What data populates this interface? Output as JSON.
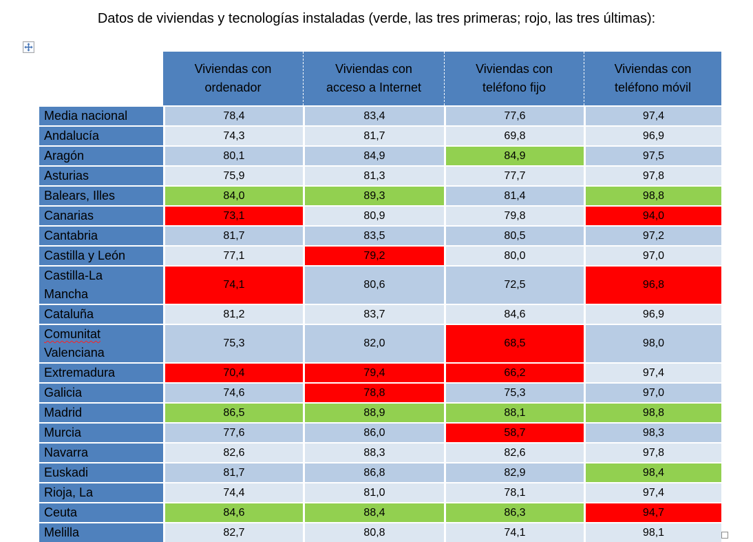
{
  "title": "Datos de viviendas y tecnologías instaladas (verde, las tres primeras; rojo, las tres últimas):",
  "colors": {
    "header_bg": "#4F81BD",
    "label_bg": "#4F81BD",
    "band_dark": "#B8CCE4",
    "band_light": "#DCE6F1",
    "green": "#92D050",
    "red": "#FF0000",
    "text": "#000000"
  },
  "icons": {
    "move_handle": "table-move-icon",
    "resize_handle": "table-resize-icon"
  },
  "table": {
    "columns": [
      {
        "line1": "Viviendas con",
        "line2": "ordenador"
      },
      {
        "line1": "Viviendas con",
        "line2": "acceso a Internet"
      },
      {
        "line1": "Viviendas con",
        "line2": "teléfono fijo"
      },
      {
        "line1": "Viviendas con",
        "line2": "teléfono móvil"
      }
    ],
    "rows": [
      {
        "label": "Media nacional",
        "cells": [
          {
            "value": "78,4"
          },
          {
            "value": "83,4"
          },
          {
            "value": "77,6"
          },
          {
            "value": "97,4"
          }
        ]
      },
      {
        "label": "Andalucía",
        "cells": [
          {
            "value": "74,3"
          },
          {
            "value": "81,7"
          },
          {
            "value": "69,8"
          },
          {
            "value": "96,9"
          }
        ]
      },
      {
        "label": "Aragón",
        "cells": [
          {
            "value": "80,1"
          },
          {
            "value": "84,9"
          },
          {
            "value": "84,9",
            "highlight": "green"
          },
          {
            "value": "97,5"
          }
        ]
      },
      {
        "label": "Asturias",
        "cells": [
          {
            "value": "75,9"
          },
          {
            "value": "81,3"
          },
          {
            "value": "77,7"
          },
          {
            "value": "97,8"
          }
        ]
      },
      {
        "label": "Balears, Illes",
        "cells": [
          {
            "value": "84,0",
            "highlight": "green"
          },
          {
            "value": "89,3",
            "highlight": "green"
          },
          {
            "value": "81,4"
          },
          {
            "value": "98,8",
            "highlight": "green"
          }
        ]
      },
      {
        "label": "Canarias",
        "cells": [
          {
            "value": "73,1",
            "highlight": "red"
          },
          {
            "value": "80,9"
          },
          {
            "value": "79,8"
          },
          {
            "value": "94,0",
            "highlight": "red"
          }
        ]
      },
      {
        "label": "Cantabria",
        "cells": [
          {
            "value": "81,7"
          },
          {
            "value": "83,5"
          },
          {
            "value": "80,5"
          },
          {
            "value": "97,2"
          }
        ]
      },
      {
        "label": "Castilla y León",
        "cells": [
          {
            "value": "77,1"
          },
          {
            "value": "79,2",
            "highlight": "red"
          },
          {
            "value": "80,0"
          },
          {
            "value": "97,0"
          }
        ]
      },
      {
        "label": "Castilla-La Mancha",
        "cells": [
          {
            "value": "74,1",
            "highlight": "red"
          },
          {
            "value": "80,6"
          },
          {
            "value": "72,5"
          },
          {
            "value": "96,8",
            "highlight": "red"
          }
        ]
      },
      {
        "label": "Cataluña",
        "cells": [
          {
            "value": "81,2"
          },
          {
            "value": "83,7"
          },
          {
            "value": "84,6"
          },
          {
            "value": "96,9"
          }
        ]
      },
      {
        "label": "Comunitat Valenciana",
        "spellcheck_word": "Comunitat",
        "cells": [
          {
            "value": "75,3"
          },
          {
            "value": "82,0"
          },
          {
            "value": "68,5",
            "highlight": "red"
          },
          {
            "value": "98,0"
          }
        ]
      },
      {
        "label": "Extremadura",
        "cells": [
          {
            "value": "70,4",
            "highlight": "red"
          },
          {
            "value": "79,4",
            "highlight": "red"
          },
          {
            "value": "66,2",
            "highlight": "red"
          },
          {
            "value": "97,4"
          }
        ]
      },
      {
        "label": "Galicia",
        "cells": [
          {
            "value": "74,6"
          },
          {
            "value": "78,8",
            "highlight": "red"
          },
          {
            "value": "75,3"
          },
          {
            "value": "97,0"
          }
        ]
      },
      {
        "label": "Madrid",
        "cells": [
          {
            "value": "86,5",
            "highlight": "green"
          },
          {
            "value": "88,9",
            "highlight": "green"
          },
          {
            "value": "88,1",
            "highlight": "green"
          },
          {
            "value": "98,8",
            "highlight": "green"
          }
        ]
      },
      {
        "label": "Murcia",
        "cells": [
          {
            "value": "77,6"
          },
          {
            "value": "86,0"
          },
          {
            "value": "58,7",
            "highlight": "red"
          },
          {
            "value": "98,3"
          }
        ]
      },
      {
        "label": "Navarra",
        "cells": [
          {
            "value": "82,6"
          },
          {
            "value": "88,3"
          },
          {
            "value": "82,6"
          },
          {
            "value": "97,8"
          }
        ]
      },
      {
        "label": "Euskadi",
        "cells": [
          {
            "value": "81,7"
          },
          {
            "value": "86,8"
          },
          {
            "value": "82,9"
          },
          {
            "value": "98,4",
            "highlight": "green"
          }
        ]
      },
      {
        "label": "Rioja, La",
        "cells": [
          {
            "value": "74,4"
          },
          {
            "value": "81,0"
          },
          {
            "value": "78,1"
          },
          {
            "value": "97,4"
          }
        ]
      },
      {
        "label": "Ceuta",
        "cells": [
          {
            "value": "84,6",
            "highlight": "green"
          },
          {
            "value": "88,4",
            "highlight": "green"
          },
          {
            "value": "86,3",
            "highlight": "green"
          },
          {
            "value": "94,7",
            "highlight": "red"
          }
        ]
      },
      {
        "label": "Melilla",
        "cells": [
          {
            "value": "82,7"
          },
          {
            "value": "80,8"
          },
          {
            "value": "74,1"
          },
          {
            "value": "98,1"
          }
        ]
      }
    ]
  }
}
